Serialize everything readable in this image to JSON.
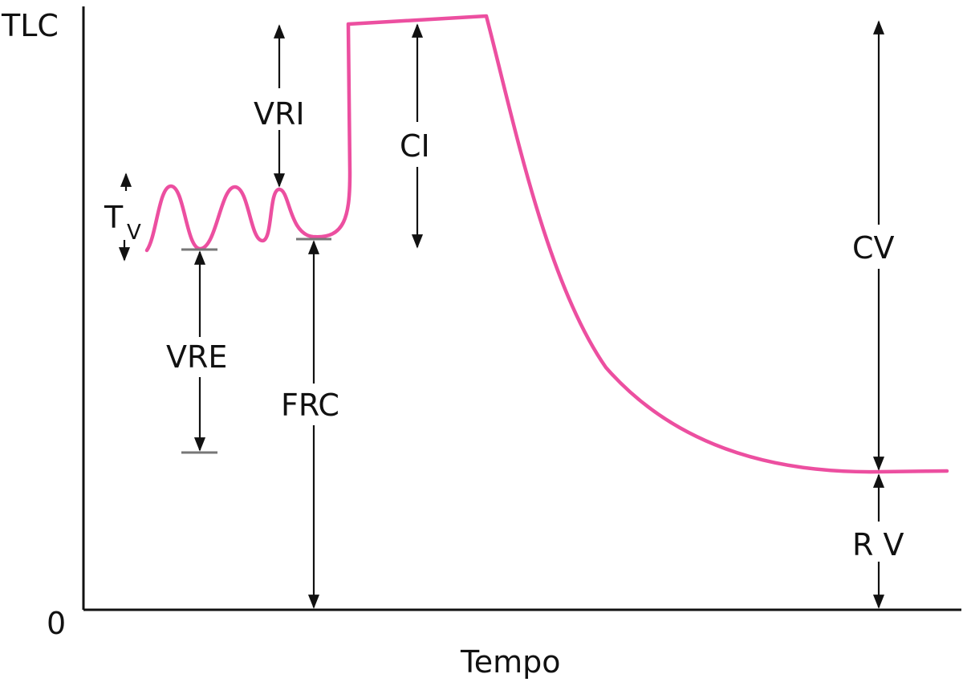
{
  "axes": {
    "y_top_label": "TLC",
    "y_zero_label": "0",
    "x_label": "Tempo"
  },
  "labels": {
    "tv_main": "T",
    "tv_sub": "V",
    "vri": "VRI",
    "vre": "VRE",
    "frc": "FRC",
    "ci": "CI",
    "cv": "CV",
    "rv": "R V"
  },
  "colors": {
    "curve": "#ec4fa0",
    "axis": "#111111",
    "tick": "#777777"
  }
}
